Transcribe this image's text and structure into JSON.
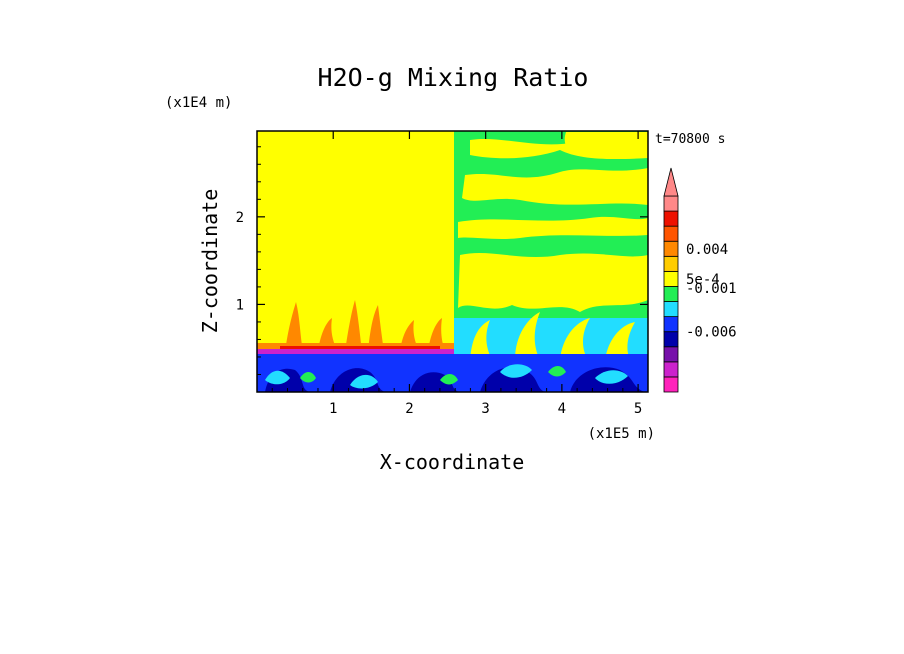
{
  "chart_data": {
    "type": "heatmap",
    "title": "H2O-g Mixing Ratio",
    "xlabel": "X-coordinate",
    "ylabel": "Z-coordinate",
    "x_unit": "(x1E5 m)",
    "y_unit": "(x1E4 m)",
    "time_label": "t=70800 s",
    "xlim": [
      0,
      5.13
    ],
    "ylim": [
      0,
      2.98
    ],
    "x_ticks": [
      1,
      2,
      3,
      4,
      5
    ],
    "y_ticks": [
      1,
      2
    ],
    "x_tick_labels": [
      "1",
      "2",
      "3",
      "4",
      "5"
    ],
    "y_tick_labels": [
      "1",
      "2"
    ],
    "colorbar": {
      "colors": [
        "#ff22bb",
        "#cc22cc",
        "#7711aa",
        "#0000aa",
        "#1133ff",
        "#22ddff",
        "#22ee55",
        "#ffff00",
        "#ffcc00",
        "#ff8800",
        "#ff5500",
        "#ee1100",
        "#ff8888"
      ],
      "labels": [
        {
          "text": "0.004",
          "level": 9.5
        },
        {
          "text": "5e-4",
          "level": 7.5
        },
        {
          "text": "-0.001",
          "level": 6.9
        },
        {
          "text": "-0.006",
          "level": 4.0
        }
      ],
      "extend": "max"
    },
    "regions": [
      {
        "name": "upper-left-domain",
        "color": "#ffff00"
      },
      {
        "name": "upper-right-domain",
        "color": "#22ee55"
      },
      {
        "name": "lower-boundary-layer",
        "color": "#1133ff"
      }
    ]
  }
}
